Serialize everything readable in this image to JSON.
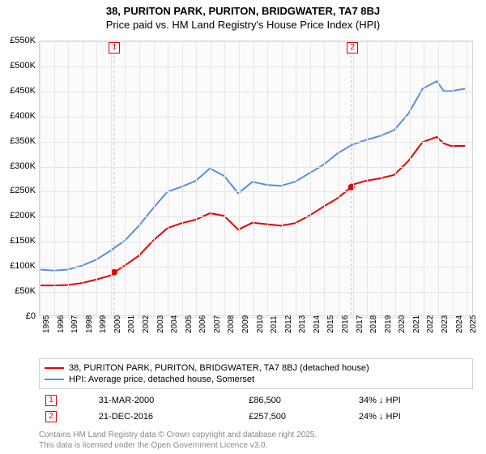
{
  "titles": {
    "line1": "38, PURITON PARK, PURITON, BRIDGWATER, TA7 8BJ",
    "line2": "Price paid vs. HM Land Registry's House Price Index (HPI)"
  },
  "chart": {
    "type": "line",
    "background_color": "#fbfbfb",
    "grid_color": "#e4e4e4",
    "border_color": "#d8d8d8",
    "x": {
      "min": 1995,
      "max": 2025.5,
      "ticks": [
        1995,
        1996,
        1997,
        1998,
        1999,
        2000,
        2001,
        2002,
        2003,
        2004,
        2005,
        2006,
        2007,
        2008,
        2009,
        2010,
        2011,
        2012,
        2013,
        2014,
        2015,
        2016,
        2017,
        2018,
        2019,
        2020,
        2021,
        2022,
        2023,
        2024,
        2025
      ]
    },
    "y": {
      "min": 0,
      "max": 550000,
      "ticks": [
        0,
        50000,
        100000,
        150000,
        200000,
        250000,
        300000,
        350000,
        400000,
        450000,
        500000,
        550000
      ],
      "labels": [
        "£0",
        "£50K",
        "£100K",
        "£150K",
        "£200K",
        "£250K",
        "£300K",
        "£350K",
        "£400K",
        "£450K",
        "£500K",
        "£550K"
      ]
    },
    "series": [
      {
        "name": "38, PURITON PARK, PURITON, BRIDGWATER, TA7 8BJ (detached house)",
        "color": "#e60000",
        "line_width": 2,
        "points": [
          [
            1995,
            60000
          ],
          [
            1996,
            60000
          ],
          [
            1997,
            61000
          ],
          [
            1998,
            65000
          ],
          [
            1999,
            72000
          ],
          [
            2000,
            80000
          ],
          [
            2000.25,
            86500
          ],
          [
            2001,
            100000
          ],
          [
            2002,
            120000
          ],
          [
            2003,
            150000
          ],
          [
            2004,
            175000
          ],
          [
            2005,
            185000
          ],
          [
            2006,
            192000
          ],
          [
            2007,
            205000
          ],
          [
            2008,
            200000
          ],
          [
            2009,
            172000
          ],
          [
            2010,
            186000
          ],
          [
            2011,
            183000
          ],
          [
            2012,
            180000
          ],
          [
            2013,
            185000
          ],
          [
            2014,
            200000
          ],
          [
            2015,
            218000
          ],
          [
            2016,
            235000
          ],
          [
            2016.97,
            257500
          ],
          [
            2017,
            262000
          ],
          [
            2018,
            270000
          ],
          [
            2019,
            275000
          ],
          [
            2020,
            282000
          ],
          [
            2021,
            310000
          ],
          [
            2022,
            348000
          ],
          [
            2023,
            358000
          ],
          [
            2023.5,
            345000
          ],
          [
            2024,
            340000
          ],
          [
            2025,
            340000
          ]
        ]
      },
      {
        "name": "HPI: Average price, detached house, Somerset",
        "color": "#5a8fd6",
        "line_width": 2,
        "points": [
          [
            1995,
            92000
          ],
          [
            1996,
            90000
          ],
          [
            1997,
            92000
          ],
          [
            1998,
            100000
          ],
          [
            1999,
            112000
          ],
          [
            2000,
            130000
          ],
          [
            2001,
            150000
          ],
          [
            2002,
            180000
          ],
          [
            2003,
            215000
          ],
          [
            2004,
            248000
          ],
          [
            2005,
            258000
          ],
          [
            2006,
            270000
          ],
          [
            2007,
            295000
          ],
          [
            2008,
            280000
          ],
          [
            2009,
            245000
          ],
          [
            2010,
            268000
          ],
          [
            2011,
            262000
          ],
          [
            2012,
            260000
          ],
          [
            2013,
            268000
          ],
          [
            2014,
            285000
          ],
          [
            2015,
            302000
          ],
          [
            2016,
            325000
          ],
          [
            2017,
            342000
          ],
          [
            2018,
            352000
          ],
          [
            2019,
            360000
          ],
          [
            2020,
            372000
          ],
          [
            2021,
            405000
          ],
          [
            2022,
            455000
          ],
          [
            2023,
            470000
          ],
          [
            2023.5,
            450000
          ],
          [
            2024,
            450000
          ],
          [
            2025,
            455000
          ]
        ]
      }
    ],
    "markers": [
      {
        "label": "1",
        "x": 2000.25,
        "y": 86500,
        "color": "#e60000"
      },
      {
        "label": "2",
        "x": 2016.97,
        "y": 257500,
        "color": "#e60000"
      }
    ],
    "sale_points": [
      {
        "x": 2000.25,
        "y": 86500
      },
      {
        "x": 2016.97,
        "y": 257500
      }
    ],
    "sale_point_color": "#e60000"
  },
  "legend": {
    "items": [
      {
        "color": "#e60000",
        "label": "38, PURITON PARK, PURITON, BRIDGWATER, TA7 8BJ (detached house)"
      },
      {
        "color": "#5a8fd6",
        "label": "HPI: Average price, detached house, Somerset"
      }
    ]
  },
  "sales": [
    {
      "n": "1",
      "color": "#e60000",
      "date": "31-MAR-2000",
      "price": "£86,500",
      "delta": "34% ↓ HPI"
    },
    {
      "n": "2",
      "color": "#e60000",
      "date": "21-DEC-2016",
      "price": "£257,500",
      "delta": "24% ↓ HPI"
    }
  ],
  "footer": {
    "l1": "Contains HM Land Registry data © Crown copyright and database right 2025.",
    "l2": "This data is licensed under the Open Government Licence v3.0."
  }
}
